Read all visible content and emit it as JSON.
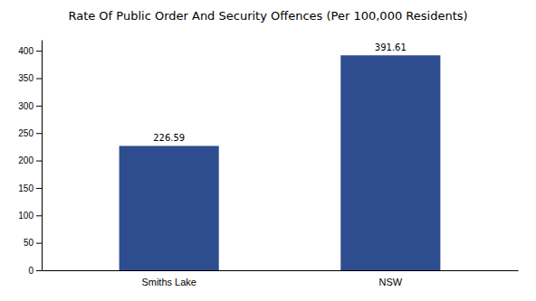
{
  "chart_data": {
    "type": "bar",
    "title": "Rate Of Public Order And Security Offences (Per 100,000 Residents)",
    "categories": [
      "Smiths Lake",
      "NSW"
    ],
    "values": [
      226.59,
      391.61
    ],
    "color": "#2e4d8e",
    "ylim": [
      0,
      420
    ],
    "yticks": [
      0,
      50,
      100,
      150,
      200,
      250,
      300,
      350,
      400
    ],
    "data_labels": true,
    "grid": false
  }
}
